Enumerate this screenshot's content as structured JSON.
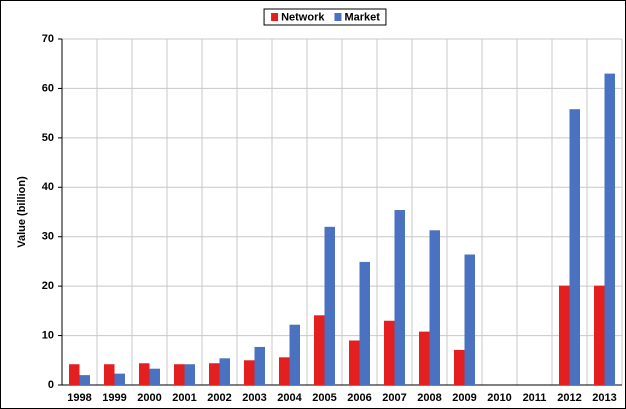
{
  "chart_data": {
    "type": "bar",
    "y_label": "Value (billion)",
    "categories": [
      "1998",
      "1999",
      "2000",
      "2001",
      "2002",
      "2003",
      "2004",
      "2005",
      "2006",
      "2007",
      "2008",
      "2009",
      "2010",
      "2011",
      "2012",
      "2013"
    ],
    "series": [
      {
        "name": "Network",
        "color": "#e3201f",
        "values": [
          4.2,
          4.2,
          4.4,
          4.2,
          4.4,
          5.0,
          5.6,
          14.1,
          9.0,
          13.0,
          10.8,
          7.1,
          null,
          null,
          20.1,
          20.1
        ]
      },
      {
        "name": "Market",
        "color": "#4a72c0",
        "values": [
          2.0,
          2.3,
          3.3,
          4.2,
          5.4,
          7.7,
          12.2,
          32.0,
          24.9,
          35.4,
          31.3,
          26.4,
          null,
          null,
          55.8,
          63.0
        ]
      }
    ],
    "ylim": [
      0,
      70
    ],
    "yticks": [
      0,
      10,
      20,
      30,
      40,
      50,
      60,
      70
    ],
    "grid": true,
    "legend": "top"
  }
}
